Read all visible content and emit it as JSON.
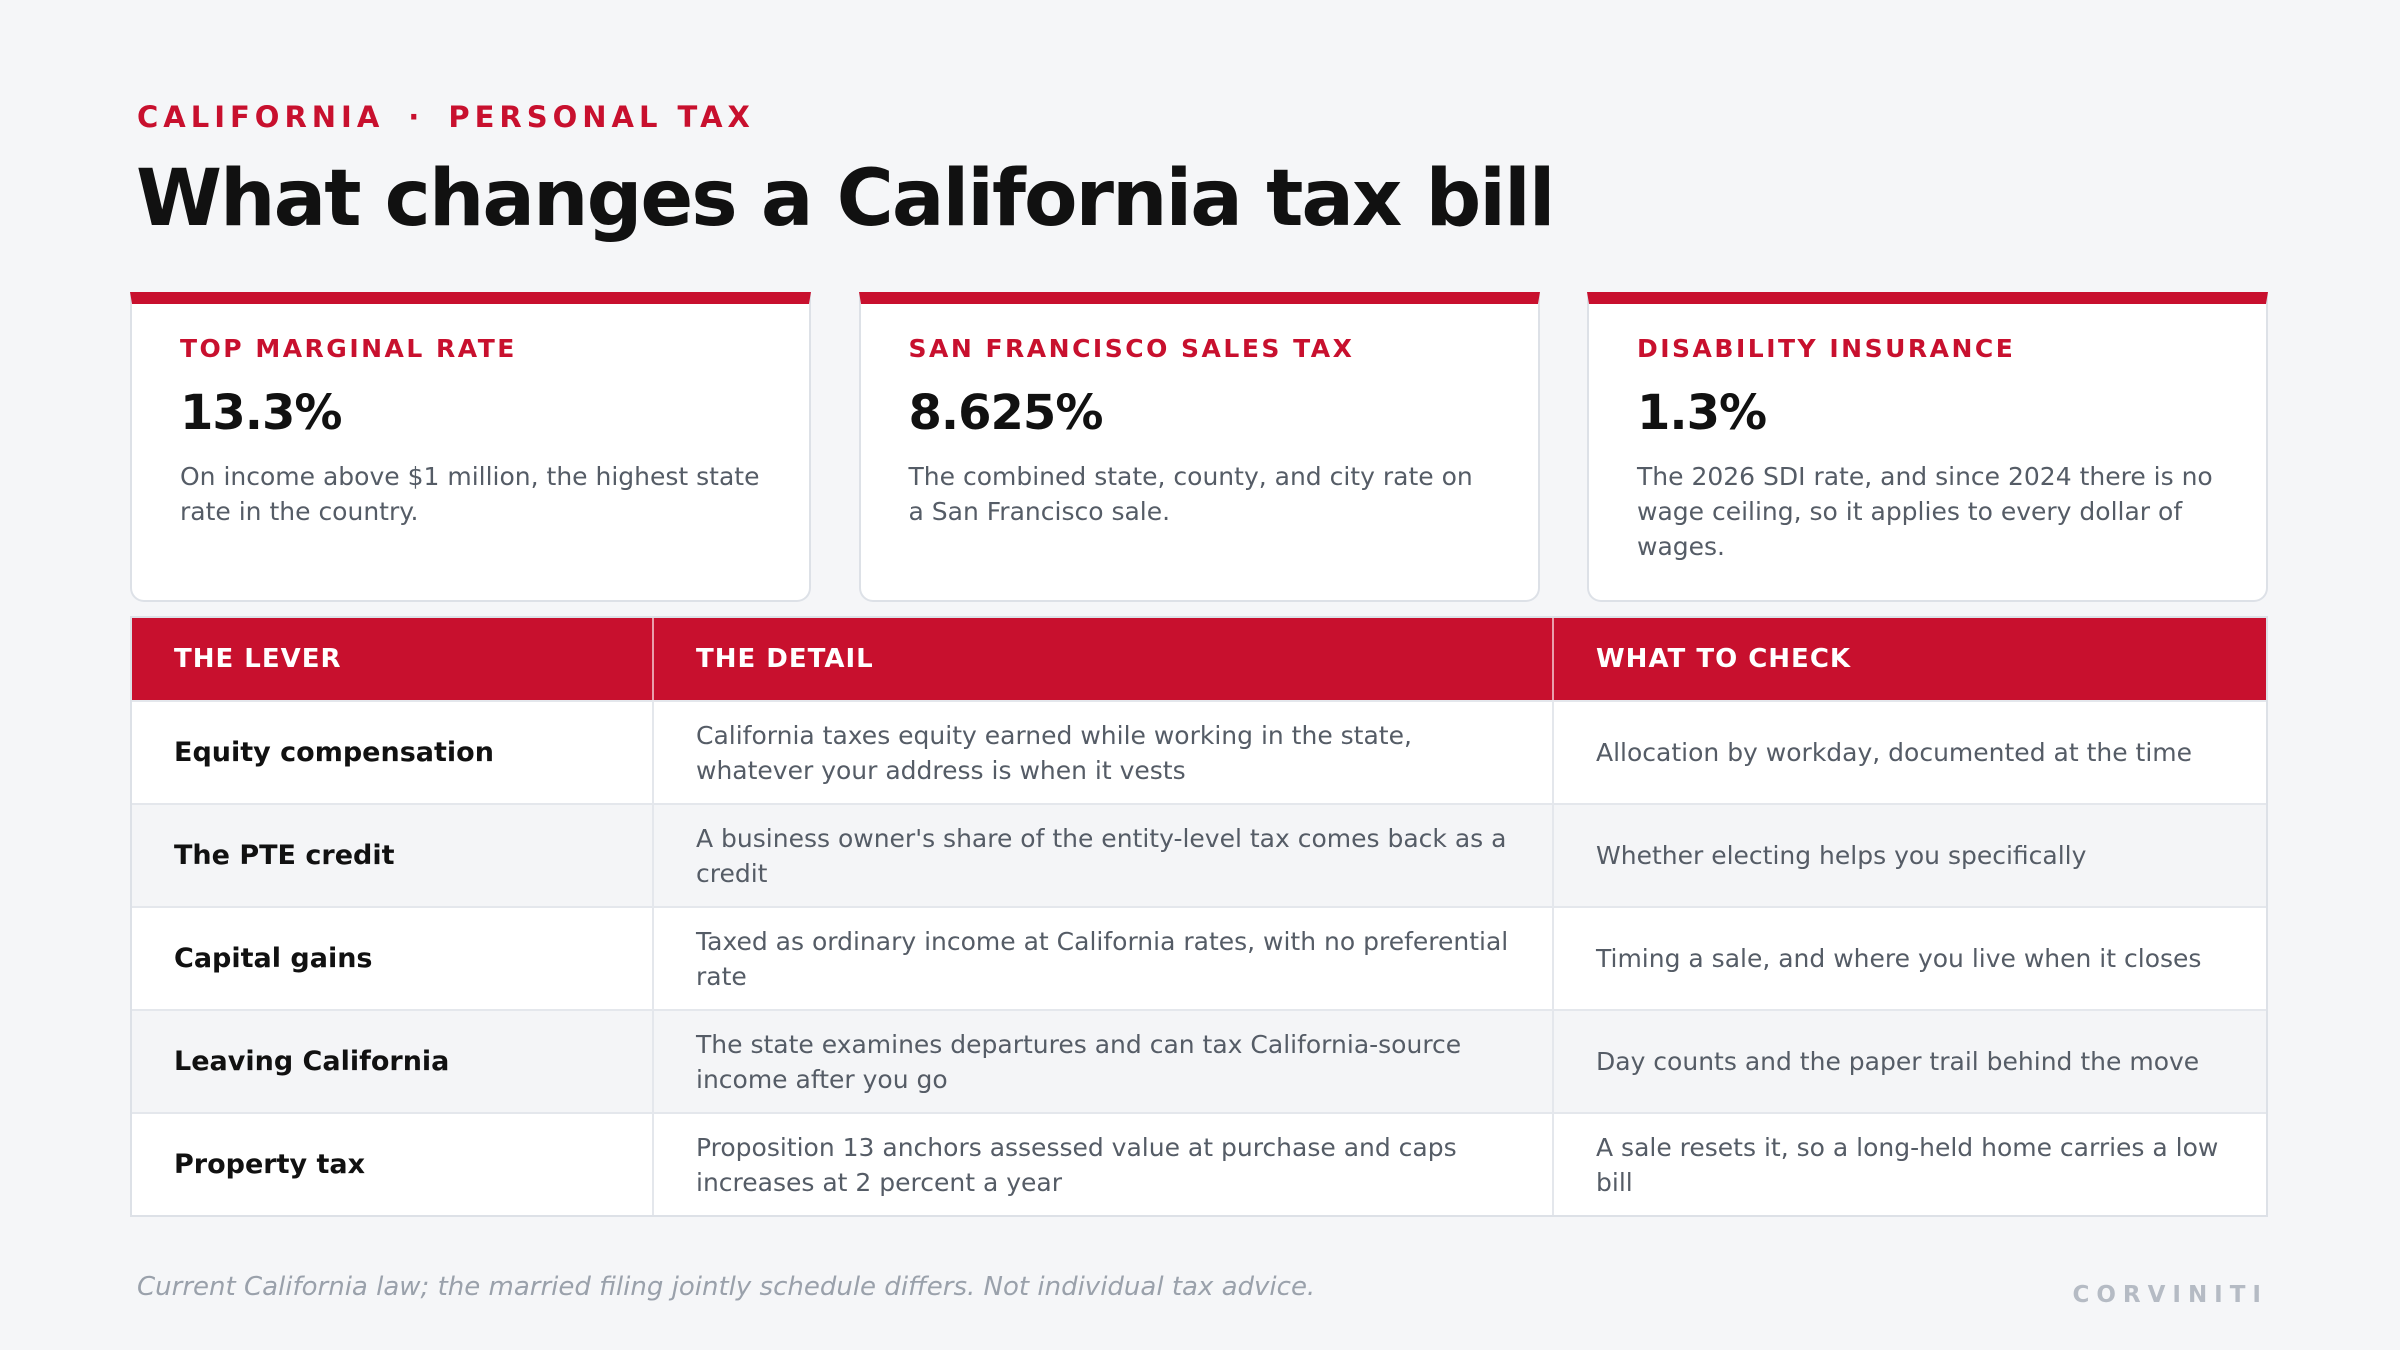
{
  "header": {
    "eyebrow_left": "CALIFORNIA",
    "eyebrow_sep": "·",
    "eyebrow_right": "PERSONAL TAX",
    "title": "What changes a California tax bill"
  },
  "cards": [
    {
      "label": "TOP MARGINAL RATE",
      "value": "13.3%",
      "desc": "On income above $1 million, the highest state rate in the country."
    },
    {
      "label": "SAN FRANCISCO SALES TAX",
      "value": "8.625%",
      "desc": "The combined state, county, and city rate on a San Francisco sale."
    },
    {
      "label": "DISABILITY INSURANCE",
      "value": "1.3%",
      "desc": "The 2026 SDI rate, and since 2024 there is no wage ceiling, so it applies to every dollar of wages."
    }
  ],
  "table": {
    "headers": [
      "THE LEVER",
      "THE DETAIL",
      "WHAT TO CHECK"
    ],
    "rows": [
      {
        "lever": "Equity compensation",
        "detail": "California taxes equity earned while working in the state, whatever your address is when it vests",
        "check": "Allocation by workday, documented at the time"
      },
      {
        "lever": "The PTE credit",
        "detail": "A business owner's share of the entity-level tax comes back as a credit",
        "check": "Whether electing helps you specifically"
      },
      {
        "lever": "Capital gains",
        "detail": "Taxed as ordinary income at California rates, with no preferential rate",
        "check": "Timing a sale, and where you live when it closes"
      },
      {
        "lever": "Leaving California",
        "detail": "The state examines departures and can tax California-source income after you go",
        "check": "Day counts and the paper trail behind the move"
      },
      {
        "lever": "Property tax",
        "detail": "Proposition 13 anchors assessed value at purchase and caps increases at 2 percent a year",
        "check": "A sale resets it, so a long-held home carries a low bill"
      }
    ]
  },
  "footer": {
    "note": "Current California law; the married filing jointly schedule differs. Not individual tax advice.",
    "brand": "CORVINITI"
  },
  "colors": {
    "accent": "#c8102e",
    "background": "#f5f6f8",
    "text": "#111111",
    "muted": "#555c66"
  }
}
